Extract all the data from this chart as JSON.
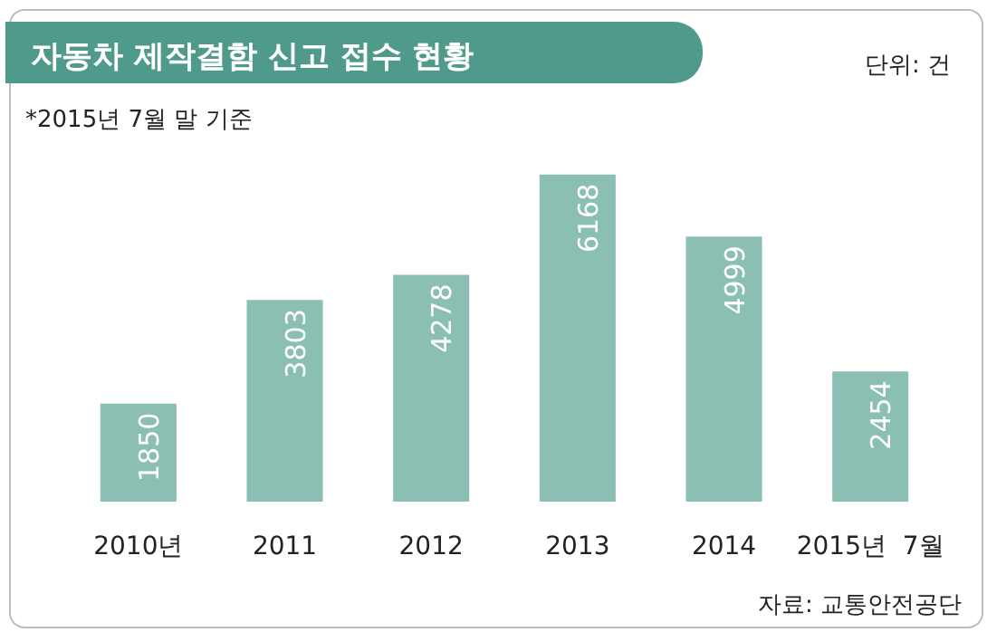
{
  "chart_data": {
    "type": "bar",
    "title": "자동차 제작결함 신고 접수 현황",
    "categories": [
      "2010년",
      "2011",
      "2012",
      "2013",
      "2014",
      "2015년  7월"
    ],
    "values": [
      1850,
      3803,
      4278,
      6168,
      4999,
      2454
    ],
    "color": "#8cbfb4",
    "data_labels": true,
    "annotations": [
      "단위: 건",
      "*2015년 7월 말 기준",
      "자료: 교통안전공단"
    ]
  }
}
